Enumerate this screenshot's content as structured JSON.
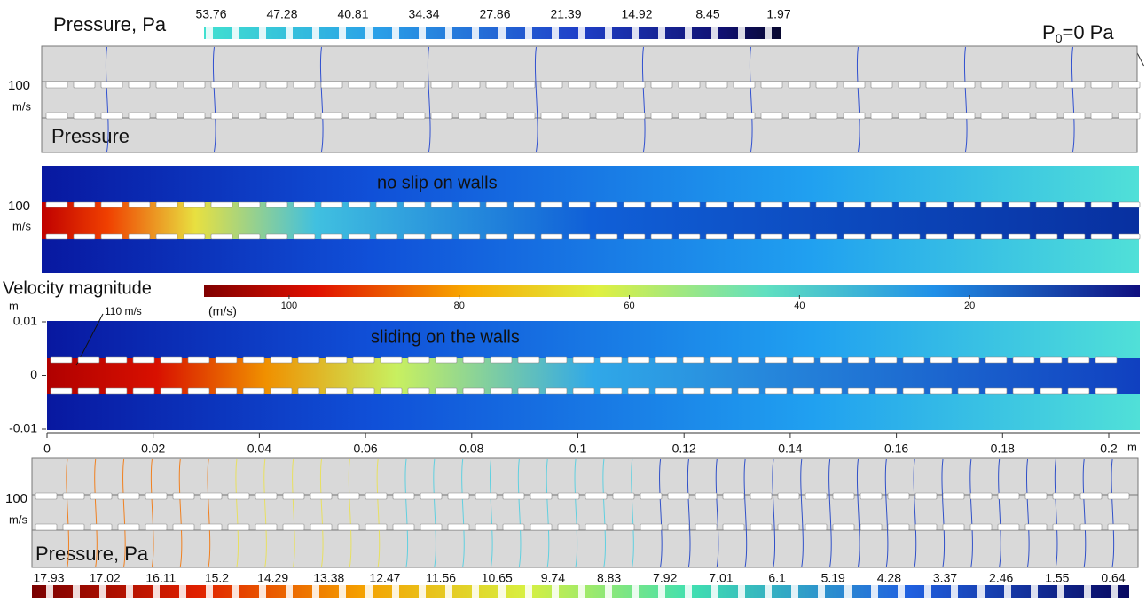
{
  "top_panel": {
    "colorbar_title": "Pressure, Pa",
    "colorbar_labels": [
      "53.76",
      "47.28",
      "40.81",
      "34.34",
      "27.86",
      "21.39",
      "14.92",
      "8.45",
      "1.97"
    ],
    "outlet_label": {
      "base": "P",
      "subscript": "0",
      "rest": "=0 Pa"
    },
    "inlet_speed": "100",
    "inlet_unit": "m/s",
    "panel_label": "Pressure"
  },
  "no_slip_panel": {
    "caption": "no slip on walls",
    "inlet_speed": "100",
    "inlet_unit": "m/s"
  },
  "velocity_colorbar": {
    "title": "Velocity magnitude",
    "unit": "(m/s)",
    "range": [
      110,
      0
    ],
    "ticks": [
      100,
      80,
      60,
      40,
      20
    ]
  },
  "sliding_panel": {
    "caption": "sliding on the walls",
    "annotation": "110 m/s",
    "y_unit": "m",
    "yrange": [
      -0.01,
      0.01
    ],
    "yticks": [
      0.01,
      0,
      -0.01
    ],
    "xrange": [
      0,
      0.2
    ],
    "xticks": [
      0,
      0.02,
      0.04,
      0.06,
      0.08,
      0.1,
      0.12,
      0.14,
      0.16,
      0.18,
      0.2
    ],
    "x_unit": "m"
  },
  "bottom_panel": {
    "inlet_speed": "100",
    "inlet_unit": "m/s",
    "colorbar_title": "Pressure, Pa",
    "colorbar_labels": [
      "17.93",
      "17.02",
      "16.11",
      "15.2",
      "14.29",
      "13.38",
      "12.47",
      "11.56",
      "10.65",
      "9.74",
      "8.83",
      "7.92",
      "7.01",
      "6.1",
      "5.19",
      "4.28",
      "3.37",
      "2.46",
      "1.55",
      "0.64"
    ]
  }
}
